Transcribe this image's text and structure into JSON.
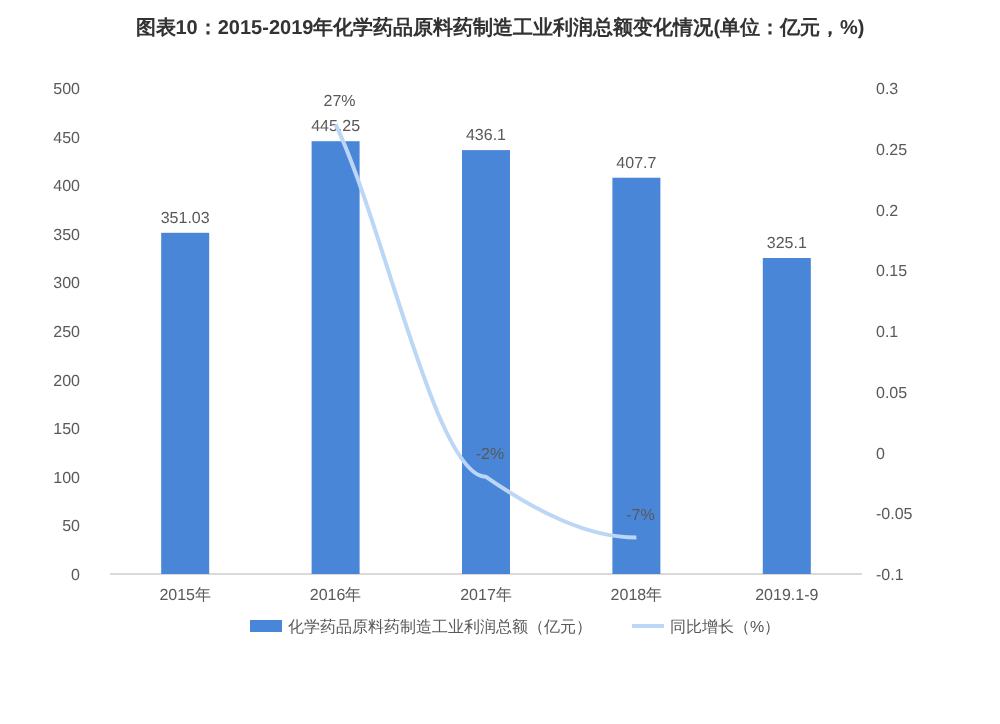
{
  "chart_data": {
    "type": "bar",
    "title": "图表10：2015-2019年化学药品原料药制造工业利润总额变化情况(单位：亿元，%)",
    "categories": [
      "2015年",
      "2016年",
      "2017年",
      "2018年",
      "2019.1-9"
    ],
    "ylim": [
      0,
      500
    ],
    "yticks": [
      0,
      50,
      100,
      150,
      200,
      250,
      300,
      350,
      400,
      450,
      500
    ],
    "y2lim": [
      -0.1,
      0.3
    ],
    "y2ticks": [
      -0.1,
      -0.05,
      0,
      0.05,
      0.1,
      0.15,
      0.2,
      0.25,
      0.3
    ],
    "grid": false,
    "legend": "bottom",
    "series": [
      {
        "name": "化学药品原料药制造工业利润总额（亿元）",
        "color": "#4a86d8",
        "values": [
          351.03,
          445.25,
          436.1,
          407.7,
          325.1
        ],
        "data_labels": true
      },
      {
        "name": "同比增长（%）",
        "type": "line",
        "axis": "y2",
        "color": "#bcd6f5",
        "values": [
          null,
          0.27,
          -0.02,
          -0.07,
          null
        ],
        "value_labels": [
          null,
          "27%",
          "-2%",
          "-7%",
          null
        ],
        "marker": "none"
      }
    ]
  }
}
